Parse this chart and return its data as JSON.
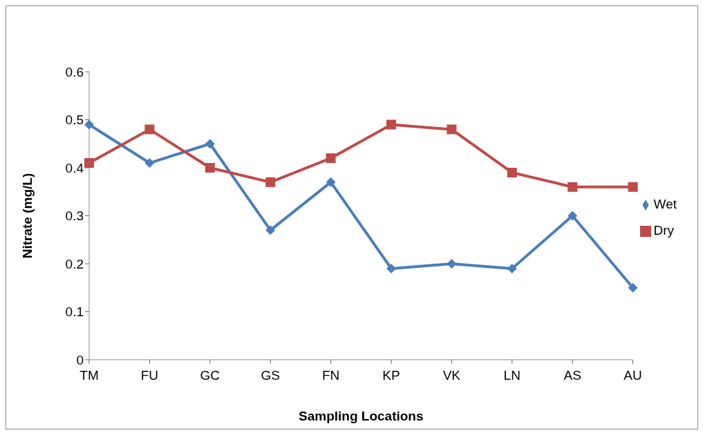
{
  "chart_data": {
    "type": "line",
    "xlabel": "Sampling Locations",
    "ylabel": "Nitrate (mg/L)",
    "categories": [
      "TM",
      "FU",
      "GC",
      "GS",
      "FN",
      "KP",
      "VK",
      "LN",
      "AS",
      "AU"
    ],
    "series": [
      {
        "name": "Wet",
        "color": "#4a7ebb",
        "marker": "diamond",
        "values": [
          0.49,
          0.41,
          0.45,
          0.27,
          0.37,
          0.19,
          0.2,
          0.19,
          0.3,
          0.15
        ]
      },
      {
        "name": "Dry",
        "color": "#be4b48",
        "marker": "square",
        "values": [
          0.41,
          0.48,
          0.4,
          0.37,
          0.42,
          0.49,
          0.48,
          0.39,
          0.36,
          0.36
        ]
      }
    ],
    "ylim": [
      0,
      0.6
    ],
    "yticks": [
      0,
      0.1,
      0.2,
      0.3,
      0.4,
      0.5,
      0.6
    ],
    "grid": false,
    "legend": "right"
  }
}
